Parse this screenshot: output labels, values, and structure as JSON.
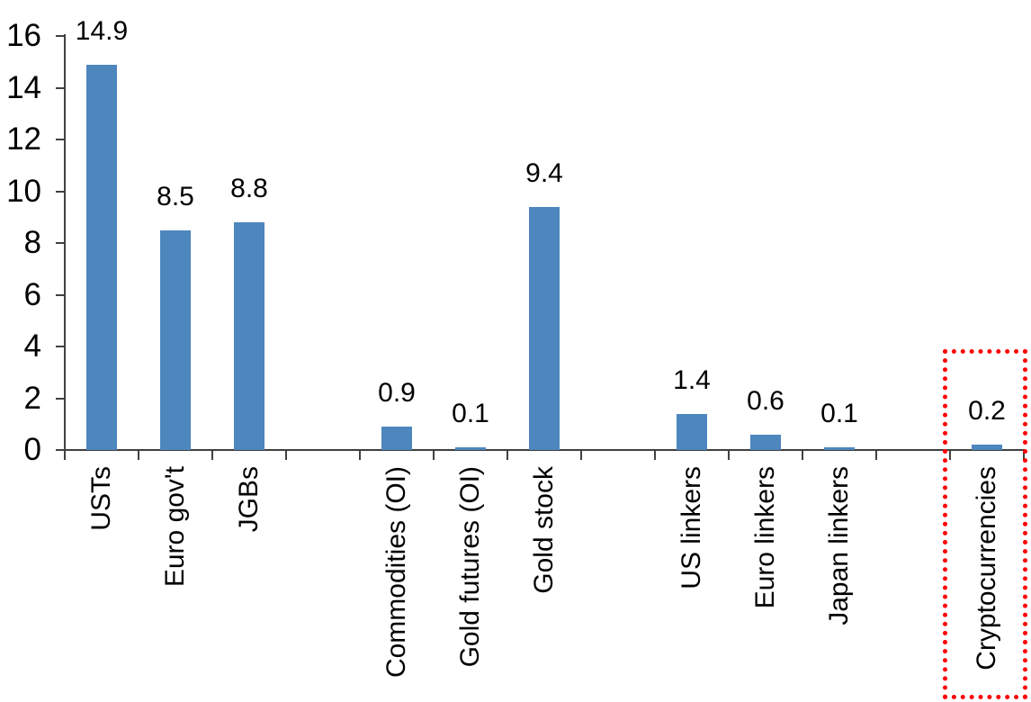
{
  "chart_data": {
    "type": "bar",
    "title": "",
    "xlabel": "",
    "ylabel": "",
    "yticks": [
      0,
      2,
      4,
      6,
      8,
      10,
      12,
      14,
      16
    ],
    "ylim": [
      0,
      16
    ],
    "num_slots": 13,
    "grid": false,
    "legend": false,
    "bar_color": "#4E86BE",
    "axis_color": "#404040",
    "text_color": "#000000",
    "series": [
      {
        "label": "USTs",
        "value": 14.9,
        "value_label": "14.9",
        "slot": 0
      },
      {
        "label": "Euro gov't",
        "value": 8.5,
        "value_label": "8.5",
        "slot": 1
      },
      {
        "label": "JGBs",
        "value": 8.8,
        "value_label": "8.8",
        "slot": 2
      },
      {
        "label": "Commodities (OI)",
        "value": 0.9,
        "value_label": "0.9",
        "slot": 4
      },
      {
        "label": "Gold futures (OI)",
        "value": 0.1,
        "value_label": "0.1",
        "slot": 5
      },
      {
        "label": "Gold stock",
        "value": 9.4,
        "value_label": "9.4",
        "slot": 6
      },
      {
        "label": "US linkers",
        "value": 1.4,
        "value_label": "1.4",
        "slot": 8
      },
      {
        "label": "Euro linkers",
        "value": 0.6,
        "value_label": "0.6",
        "slot": 9
      },
      {
        "label": "Japan linkers",
        "value": 0.1,
        "value_label": "0.1",
        "slot": 10
      },
      {
        "label": "Cryptocurrencies",
        "value": 0.2,
        "value_label": "0.2",
        "slot": 12
      }
    ],
    "annotation": {
      "type": "dotted-box",
      "color": "#FF0000",
      "around_category": "Cryptocurrencies"
    }
  }
}
